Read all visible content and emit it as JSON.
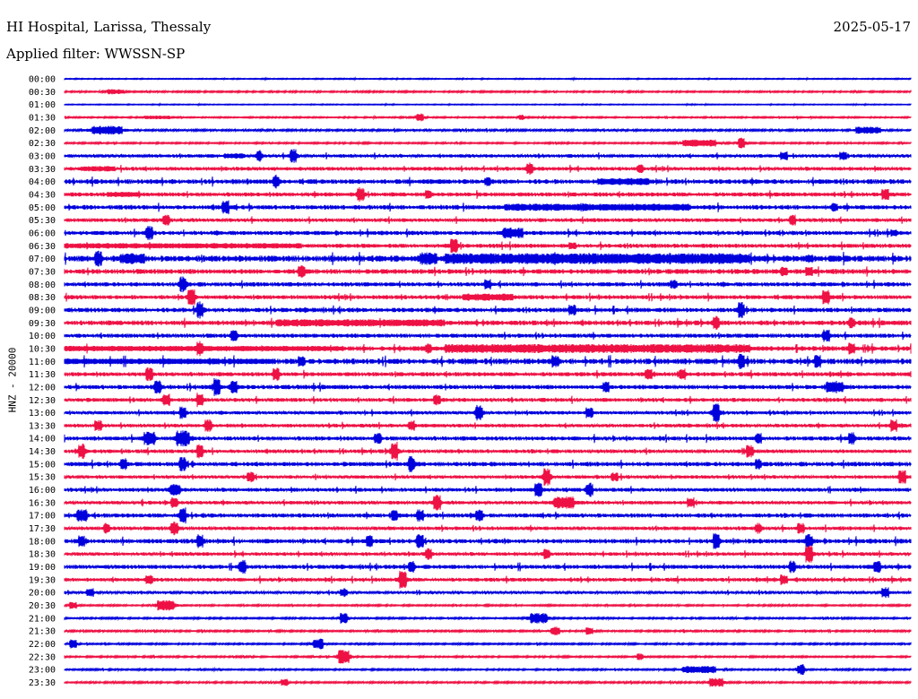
{
  "header": {
    "station": "HI Hospital, Larissa, Thessaly",
    "date": "2025-05-17",
    "filter": "Applied filter: WWSSN-SP"
  },
  "chart_data": {
    "type": "line",
    "title": "HI Hospital, Larissa, Thessaly",
    "subtitle": "Applied filter: WWSSN-SP",
    "ylabel": "HNZ - 20000",
    "colors": [
      "#0000dd",
      "#ee1144"
    ],
    "categories": [
      "00:00",
      "00:30",
      "01:00",
      "01:30",
      "02:00",
      "02:30",
      "03:00",
      "03:30",
      "04:00",
      "04:30",
      "05:00",
      "05:30",
      "06:00",
      "06:30",
      "07:00",
      "07:30",
      "08:00",
      "08:30",
      "09:00",
      "09:30",
      "10:00",
      "10:30",
      "11:00",
      "11:30",
      "12:00",
      "12:30",
      "13:00",
      "13:30",
      "14:00",
      "14:30",
      "15:00",
      "15:30",
      "16:00",
      "16:30",
      "17:00",
      "17:30",
      "18:00",
      "18:30",
      "19:00",
      "19:30",
      "20:00",
      "20:30",
      "21:00",
      "21:30",
      "22:00",
      "22:30",
      "23:00",
      "23:30"
    ],
    "series": [
      {
        "noise": 0.5,
        "events": []
      },
      {
        "noise": 0.8,
        "events": [
          [
            0.06,
            0.01,
            3
          ]
        ]
      },
      {
        "noise": 0.4,
        "events": []
      },
      {
        "noise": 0.7,
        "events": [
          [
            0.11,
            0.015,
            2
          ],
          [
            0.42,
            0.004,
            5
          ],
          [
            0.54,
            0.003,
            3
          ]
        ]
      },
      {
        "noise": 1.0,
        "events": [
          [
            0.05,
            0.018,
            5
          ],
          [
            0.95,
            0.015,
            4
          ]
        ]
      },
      {
        "noise": 0.8,
        "events": [
          [
            0.75,
            0.02,
            4
          ],
          [
            0.8,
            0.004,
            6
          ]
        ]
      },
      {
        "noise": 1.6,
        "events": [
          [
            0.2,
            0.012,
            3
          ],
          [
            0.23,
            0.003,
            8
          ],
          [
            0.27,
            0.004,
            8
          ],
          [
            0.85,
            0.004,
            5
          ],
          [
            0.92,
            0.004,
            5
          ]
        ]
      },
      {
        "noise": 1.8,
        "events": [
          [
            0.04,
            0.02,
            3
          ],
          [
            0.55,
            0.004,
            7
          ],
          [
            0.68,
            0.004,
            5
          ]
        ]
      },
      {
        "noise": 2.3,
        "events": [
          [
            0.25,
            0.004,
            8
          ],
          [
            0.5,
            0.004,
            5
          ],
          [
            0.66,
            0.03,
            4
          ]
        ]
      },
      {
        "noise": 2.0,
        "events": [
          [
            0.07,
            0.02,
            3
          ],
          [
            0.35,
            0.004,
            9
          ],
          [
            0.43,
            0.004,
            5
          ],
          [
            0.97,
            0.004,
            6
          ]
        ]
      },
      {
        "noise": 2.2,
        "events": [
          [
            0.19,
            0.004,
            8
          ],
          [
            0.63,
            0.11,
            4
          ],
          [
            0.91,
            0.004,
            5
          ]
        ]
      },
      {
        "noise": 1.8,
        "events": [
          [
            0.12,
            0.004,
            6
          ],
          [
            0.86,
            0.004,
            6
          ]
        ]
      },
      {
        "noise": 2.0,
        "events": [
          [
            0.1,
            0.004,
            8
          ],
          [
            0.53,
            0.012,
            6
          ],
          [
            0.98,
            0.004,
            4
          ]
        ]
      },
      {
        "noise": 2.0,
        "events": [
          [
            0.03,
            0.25,
            3
          ],
          [
            0.46,
            0.004,
            9
          ],
          [
            0.6,
            0.004,
            4
          ]
        ]
      },
      {
        "noise": 3.0,
        "events": [
          [
            0.04,
            0.004,
            9
          ],
          [
            0.08,
            0.015,
            6
          ],
          [
            0.43,
            0.01,
            7
          ],
          [
            0.63,
            0.18,
            6
          ],
          [
            0.88,
            0.004,
            5
          ]
        ]
      },
      {
        "noise": 2.4,
        "events": [
          [
            0.28,
            0.004,
            7
          ],
          [
            0.85,
            0.004,
            6
          ],
          [
            0.88,
            0.004,
            5
          ]
        ]
      },
      {
        "noise": 2.0,
        "events": [
          [
            0.14,
            0.004,
            9
          ],
          [
            0.5,
            0.004,
            6
          ],
          [
            0.72,
            0.004,
            5
          ]
        ]
      },
      {
        "noise": 2.0,
        "events": [
          [
            0.15,
            0.004,
            9
          ],
          [
            0.5,
            0.03,
            4
          ],
          [
            0.9,
            0.004,
            8
          ]
        ]
      },
      {
        "noise": 2.2,
        "events": [
          [
            0.16,
            0.004,
            10
          ],
          [
            0.6,
            0.004,
            6
          ],
          [
            0.8,
            0.004,
            9
          ]
        ]
      },
      {
        "noise": 2.3,
        "events": [
          [
            0.35,
            0.1,
            4
          ],
          [
            0.77,
            0.004,
            8
          ],
          [
            0.93,
            0.004,
            6
          ]
        ]
      },
      {
        "noise": 2.0,
        "events": [
          [
            0.2,
            0.004,
            7
          ],
          [
            0.9,
            0.004,
            7
          ]
        ]
      },
      {
        "noise": 2.3,
        "events": [
          [
            0.08,
            0.25,
            3
          ],
          [
            0.16,
            0.004,
            9
          ],
          [
            0.43,
            0.004,
            6
          ],
          [
            0.63,
            0.18,
            5
          ],
          [
            0.93,
            0.004,
            7
          ]
        ]
      },
      {
        "noise": 2.8,
        "events": [
          [
            0.05,
            0.2,
            3
          ],
          [
            0.28,
            0.004,
            6
          ],
          [
            0.58,
            0.004,
            7
          ],
          [
            0.8,
            0.004,
            9
          ],
          [
            0.89,
            0.004,
            8
          ]
        ]
      },
      {
        "noise": 2.0,
        "events": [
          [
            0.1,
            0.004,
            8
          ],
          [
            0.25,
            0.004,
            7
          ],
          [
            0.69,
            0.004,
            6
          ],
          [
            0.73,
            0.004,
            7
          ]
        ]
      },
      {
        "noise": 2.1,
        "events": [
          [
            0.11,
            0.004,
            9
          ],
          [
            0.18,
            0.004,
            10
          ],
          [
            0.2,
            0.004,
            9
          ],
          [
            0.64,
            0.004,
            6
          ],
          [
            0.91,
            0.01,
            7
          ]
        ]
      },
      {
        "noise": 1.9,
        "events": [
          [
            0.12,
            0.004,
            7
          ],
          [
            0.16,
            0.004,
            8
          ],
          [
            0.44,
            0.004,
            6
          ]
        ]
      },
      {
        "noise": 1.6,
        "events": [
          [
            0.14,
            0.004,
            7
          ],
          [
            0.49,
            0.004,
            9
          ],
          [
            0.62,
            0.004,
            6
          ],
          [
            0.77,
            0.004,
            11
          ]
        ]
      },
      {
        "noise": 1.7,
        "events": [
          [
            0.04,
            0.004,
            6
          ],
          [
            0.17,
            0.004,
            7
          ],
          [
            0.41,
            0.004,
            6
          ],
          [
            0.98,
            0.004,
            7
          ]
        ]
      },
      {
        "noise": 2.0,
        "events": [
          [
            0.1,
            0.006,
            8
          ],
          [
            0.14,
            0.008,
            9
          ],
          [
            0.37,
            0.004,
            6
          ],
          [
            0.82,
            0.004,
            6
          ],
          [
            0.93,
            0.004,
            7
          ]
        ]
      },
      {
        "noise": 1.8,
        "events": [
          [
            0.02,
            0.004,
            9
          ],
          [
            0.16,
            0.004,
            8
          ],
          [
            0.39,
            0.004,
            11
          ],
          [
            0.81,
            0.004,
            7
          ]
        ]
      },
      {
        "noise": 2.1,
        "events": [
          [
            0.07,
            0.004,
            7
          ],
          [
            0.14,
            0.004,
            8
          ],
          [
            0.41,
            0.004,
            9
          ],
          [
            0.82,
            0.004,
            6
          ]
        ]
      },
      {
        "noise": 1.6,
        "events": [
          [
            0.22,
            0.004,
            6
          ],
          [
            0.57,
            0.004,
            10
          ],
          [
            0.65,
            0.004,
            5
          ],
          [
            0.99,
            0.004,
            8
          ]
        ]
      },
      {
        "noise": 1.8,
        "events": [
          [
            0.13,
            0.006,
            7
          ],
          [
            0.56,
            0.004,
            8
          ],
          [
            0.62,
            0.004,
            8
          ]
        ]
      },
      {
        "noise": 1.7,
        "events": [
          [
            0.13,
            0.004,
            6
          ],
          [
            0.44,
            0.004,
            9
          ],
          [
            0.59,
            0.012,
            7
          ],
          [
            0.74,
            0.004,
            6
          ]
        ]
      },
      {
        "noise": 2.0,
        "events": [
          [
            0.02,
            0.006,
            7
          ],
          [
            0.14,
            0.004,
            9
          ],
          [
            0.39,
            0.004,
            6
          ],
          [
            0.42,
            0.004,
            7
          ],
          [
            0.49,
            0.004,
            7
          ]
        ]
      },
      {
        "noise": 1.8,
        "events": [
          [
            0.05,
            0.004,
            6
          ],
          [
            0.13,
            0.004,
            8
          ],
          [
            0.82,
            0.004,
            6
          ],
          [
            0.87,
            0.004,
            6
          ]
        ]
      },
      {
        "noise": 2.2,
        "events": [
          [
            0.02,
            0.004,
            7
          ],
          [
            0.16,
            0.004,
            8
          ],
          [
            0.36,
            0.004,
            7
          ],
          [
            0.42,
            0.004,
            8
          ],
          [
            0.77,
            0.004,
            9
          ],
          [
            0.88,
            0.004,
            8
          ]
        ]
      },
      {
        "noise": 1.7,
        "events": [
          [
            0.43,
            0.004,
            7
          ],
          [
            0.57,
            0.004,
            6
          ],
          [
            0.88,
            0.004,
            10
          ]
        ]
      },
      {
        "noise": 2.0,
        "events": [
          [
            0.21,
            0.004,
            8
          ],
          [
            0.41,
            0.004,
            7
          ],
          [
            0.86,
            0.004,
            7
          ],
          [
            0.96,
            0.004,
            7
          ]
        ]
      },
      {
        "noise": 1.8,
        "events": [
          [
            0.1,
            0.004,
            6
          ],
          [
            0.4,
            0.004,
            10
          ],
          [
            0.85,
            0.004,
            6
          ]
        ]
      },
      {
        "noise": 1.4,
        "events": [
          [
            0.03,
            0.004,
            5
          ],
          [
            0.33,
            0.004,
            5
          ],
          [
            0.97,
            0.004,
            6
          ]
        ]
      },
      {
        "noise": 0.8,
        "events": [
          [
            0.01,
            0.004,
            4
          ],
          [
            0.12,
            0.01,
            6
          ]
        ]
      },
      {
        "noise": 0.8,
        "events": [
          [
            0.33,
            0.004,
            6
          ],
          [
            0.56,
            0.01,
            6
          ]
        ]
      },
      {
        "noise": 0.9,
        "events": [
          [
            0.58,
            0.005,
            5
          ],
          [
            0.62,
            0.004,
            4
          ]
        ]
      },
      {
        "noise": 0.8,
        "events": [
          [
            0.01,
            0.004,
            5
          ],
          [
            0.3,
            0.006,
            6
          ]
        ]
      },
      {
        "noise": 0.8,
        "events": [
          [
            0.33,
            0.006,
            8
          ],
          [
            0.68,
            0.004,
            4
          ]
        ]
      },
      {
        "noise": 0.8,
        "events": [
          [
            0.75,
            0.02,
            4
          ],
          [
            0.87,
            0.004,
            6
          ]
        ]
      },
      {
        "noise": 0.9,
        "events": [
          [
            0.26,
            0.004,
            4
          ],
          [
            0.77,
            0.008,
            5
          ]
        ]
      }
    ]
  }
}
